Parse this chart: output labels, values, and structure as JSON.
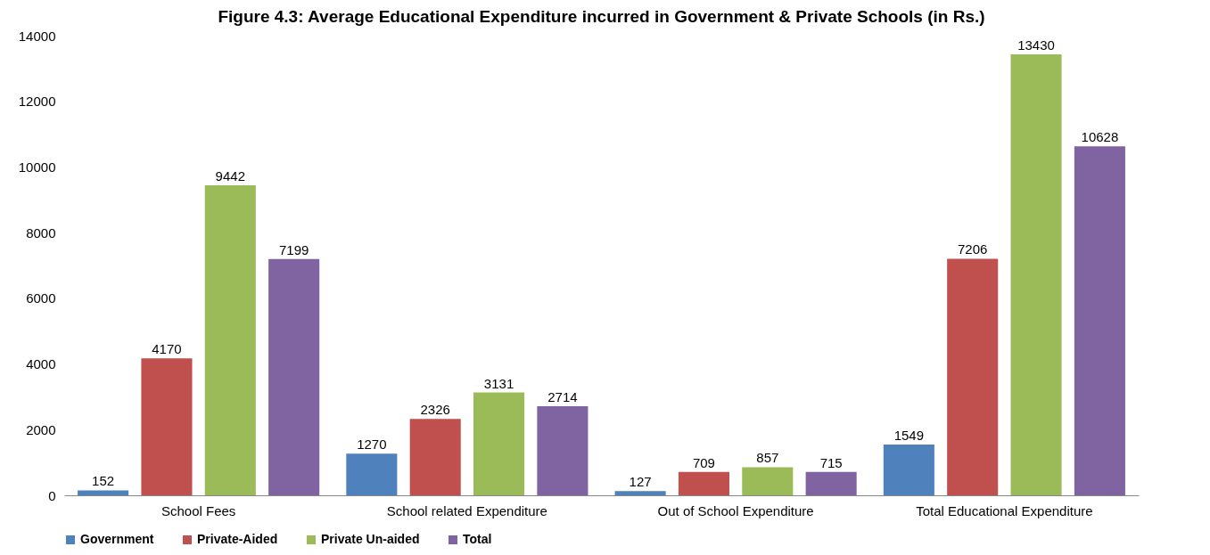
{
  "chart_data": {
    "type": "bar",
    "title": "Figure 4.3: Average Educational Expenditure incurred in Government & Private Schools (in Rs.)",
    "categories": [
      "School Fees",
      "School related Expenditure",
      "Out of School Expenditure",
      "Total Educational Expenditure"
    ],
    "series": [
      {
        "name": "Government",
        "color": "#4f81bd",
        "values": [
          152,
          1270,
          127,
          1549
        ]
      },
      {
        "name": "Private-Aided",
        "color": "#c0504d",
        "values": [
          4170,
          2326,
          709,
          7206
        ]
      },
      {
        "name": "Private Un-aided",
        "color": "#9bbb59",
        "values": [
          9442,
          3131,
          857,
          13430
        ]
      },
      {
        "name": "Total",
        "color": "#8064a2",
        "values": [
          7199,
          2714,
          715,
          10628
        ]
      }
    ],
    "ylim": [
      0,
      14000
    ],
    "yticks": [
      0,
      2000,
      4000,
      6000,
      8000,
      10000,
      12000,
      14000
    ],
    "grid": false,
    "legend": "bottom",
    "data_labels": true
  }
}
